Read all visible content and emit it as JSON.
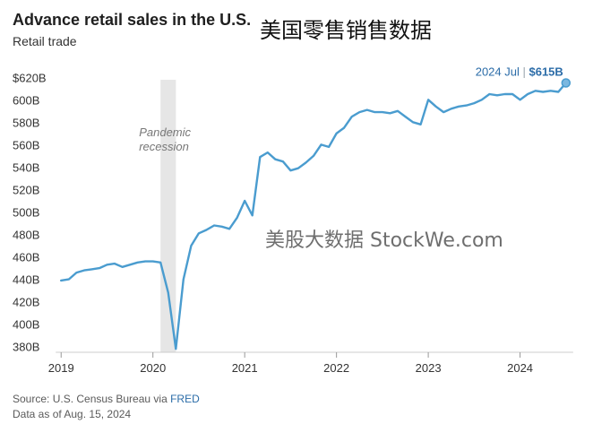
{
  "header": {
    "title": "Advance retail sales in the U.S.",
    "cn_title": "美国零售销售数据",
    "subtitle": "Retail trade"
  },
  "watermark": "美股大数据 StockWe.com",
  "footer": {
    "source_prefix": "Source: U.S. Census Bureau via ",
    "source_link": "FRED",
    "data_as_of": "Data as of Aug. 15, 2024"
  },
  "callout": {
    "label": "2024 Jul",
    "separator": "|",
    "value": "$615B"
  },
  "colors": {
    "line": "#4a9ccf",
    "shade": "#e6e6e6",
    "axis_text": "#333333",
    "callout_value": "#2b6ca8"
  },
  "chart_data": {
    "type": "line",
    "title": "Advance retail sales in the U.S.",
    "subtitle": "Retail trade",
    "ylim": [
      375,
      625
    ],
    "xlim": [
      2018.9,
      2024.58
    ],
    "y_ticks": [
      {
        "value": 620,
        "label": "$620B"
      },
      {
        "value": 600,
        "label": "600B"
      },
      {
        "value": 580,
        "label": "580B"
      },
      {
        "value": 560,
        "label": "560B"
      },
      {
        "value": 540,
        "label": "540B"
      },
      {
        "value": 520,
        "label": "520B"
      },
      {
        "value": 500,
        "label": "500B"
      },
      {
        "value": 480,
        "label": "480B"
      },
      {
        "value": 460,
        "label": "460B"
      },
      {
        "value": 440,
        "label": "440B"
      },
      {
        "value": 420,
        "label": "420B"
      },
      {
        "value": 400,
        "label": "400B"
      },
      {
        "value": 380,
        "label": "380B"
      }
    ],
    "x_ticks": [
      {
        "value": 2019,
        "label": "2019"
      },
      {
        "value": 2020,
        "label": "2020"
      },
      {
        "value": 2021,
        "label": "2021"
      },
      {
        "value": 2022,
        "label": "2022"
      },
      {
        "value": 2023,
        "label": "2023"
      },
      {
        "value": 2024,
        "label": "2024"
      }
    ],
    "shaded_region": {
      "start": 2020.083,
      "end": 2020.25,
      "label_line1": "Pandemic",
      "label_line2": "recession"
    },
    "series": [
      {
        "x": [
          2019.0,
          2019.083,
          2019.167,
          2019.25,
          2019.333,
          2019.417,
          2019.5,
          2019.583,
          2019.667,
          2019.75,
          2019.833,
          2019.917,
          2020.0,
          2020.083,
          2020.167,
          2020.25,
          2020.333,
          2020.417,
          2020.5,
          2020.583,
          2020.667,
          2020.75,
          2020.833,
          2020.917,
          2021.0,
          2021.083,
          2021.167,
          2021.25,
          2021.333,
          2021.417,
          2021.5,
          2021.583,
          2021.667,
          2021.75,
          2021.833,
          2021.917,
          2022.0,
          2022.083,
          2022.167,
          2022.25,
          2022.333,
          2022.417,
          2022.5,
          2022.583,
          2022.667,
          2022.75,
          2022.833,
          2022.917,
          2023.0,
          2023.083,
          2023.167,
          2023.25,
          2023.333,
          2023.417,
          2023.5,
          2023.583,
          2023.667,
          2023.75,
          2023.833,
          2023.917,
          2024.0,
          2024.083,
          2024.167,
          2024.25,
          2024.333,
          2024.417,
          2024.5
        ],
        "values": [
          439,
          440,
          446,
          448,
          449,
          450,
          453,
          454,
          451,
          453,
          455,
          456,
          456,
          455,
          428,
          378,
          440,
          470,
          481,
          484,
          488,
          487,
          485,
          495,
          510,
          497,
          549,
          553,
          547,
          545,
          537,
          539,
          544,
          550,
          560,
          558,
          570,
          575,
          585,
          589,
          591,
          589,
          589,
          588,
          590,
          585,
          580,
          578,
          600,
          594,
          589,
          592,
          594,
          595,
          597,
          600,
          605,
          604,
          605,
          605,
          600,
          605,
          608,
          607,
          608,
          607,
          615
        ]
      }
    ],
    "grid": false,
    "legend": "none"
  }
}
